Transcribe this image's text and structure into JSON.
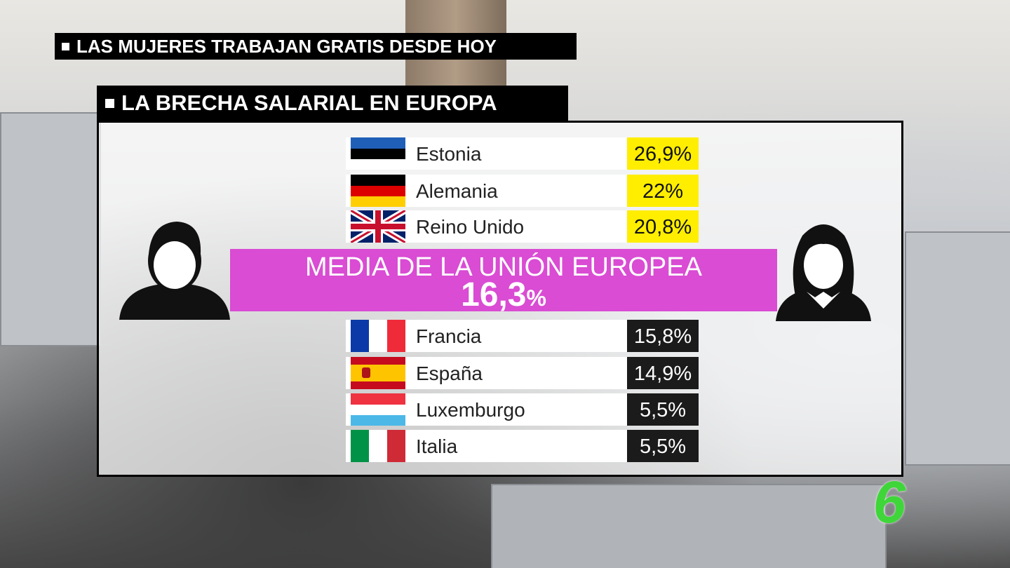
{
  "headline": "LAS MUJERES TRABAJAN GRATIS DESDE HOY",
  "section_title": "LA BRECHA SALARIAL EN EUROPA",
  "above_average": [
    {
      "country": "Estonia",
      "value": "26,9%"
    },
    {
      "country": "Alemania",
      "value": "22%"
    },
    {
      "country": "Reino Unido",
      "value": "20,8%"
    }
  ],
  "average": {
    "label": "MEDIA DE LA UNIÓN EUROPEA",
    "value": "16,3",
    "unit": "%"
  },
  "below_average": [
    {
      "country": "Francia",
      "value": "15,8%"
    },
    {
      "country": "España",
      "value": "14,9%"
    },
    {
      "country": "Luxemburgo",
      "value": "5,5%"
    },
    {
      "country": "Italia",
      "value": "5,5%"
    }
  ],
  "channel_logo": "6"
}
